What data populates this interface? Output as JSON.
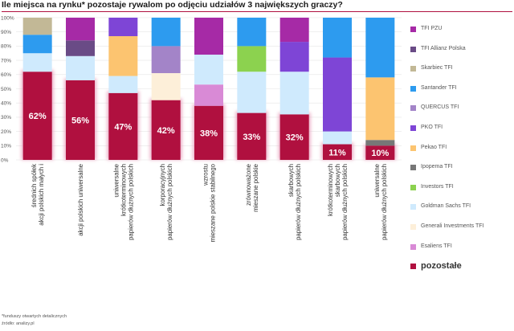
{
  "chart_data": {
    "type": "stacked-bar",
    "title": "Ile miejsca na rynku* pozostaje rywalom po odjęciu udziałów 3 największych graczy?",
    "ylim": [
      0,
      100
    ],
    "yticks": [
      "0%",
      "10%",
      "20%",
      "30%",
      "40%",
      "50%",
      "60%",
      "70%",
      "80%",
      "90%",
      "100%"
    ],
    "categories": [
      "akcji polskich małych i średnich spółek",
      "akcji polskich uniwersalne",
      "papierów dłużnych polskich krótkoterminowych uniwersalne",
      "papierów dłużnych polskich korporacyjnych",
      "mieszane polskie stabilnego wzrostu",
      "mieszane polskie zrównoważone",
      "papierów dłużnych polskich skarbowych",
      "papierów dłużnych polskich skarbowych krótkoterminowych",
      "papierów dłużnych polskich uniwersalne"
    ],
    "series": [
      {
        "name": "pozostałe",
        "color": "#b0103f",
        "values": [
          62,
          56,
          47,
          42,
          38,
          33,
          32,
          11,
          10
        ]
      },
      {
        "name": "Esaliens TFI",
        "color": "#d98ad6",
        "values": [
          0,
          0,
          0,
          0,
          15,
          0,
          0,
          0,
          0
        ]
      },
      {
        "name": "Generali Investments TFI",
        "color": "#fdefd9",
        "values": [
          0,
          0,
          0,
          19,
          0,
          0,
          0,
          0,
          0
        ]
      },
      {
        "name": "Goldman Sachs TFI",
        "color": "#cfeafd",
        "values": [
          13,
          17,
          12,
          0,
          21,
          29,
          30,
          9,
          0
        ]
      },
      {
        "name": "Investors TFI",
        "color": "#8cd24f",
        "values": [
          0,
          0,
          0,
          0,
          0,
          18,
          0,
          0,
          0
        ]
      },
      {
        "name": "Ipopema TFI",
        "color": "#777777",
        "values": [
          0,
          0,
          0,
          0,
          0,
          0,
          0,
          0,
          4
        ]
      },
      {
        "name": "Pekao TFI",
        "color": "#fcc470",
        "values": [
          0,
          0,
          28,
          0,
          0,
          0,
          0,
          0,
          44
        ]
      },
      {
        "name": "PKO TFI",
        "color": "#7e45d6",
        "values": [
          0,
          0,
          13,
          0,
          0,
          0,
          21,
          52,
          0
        ]
      },
      {
        "name": "QUERCUS TFI",
        "color": "#a384c8",
        "values": [
          0,
          0,
          0,
          19,
          0,
          0,
          0,
          0,
          0
        ]
      },
      {
        "name": "Santander TFI",
        "color": "#2d9bef",
        "values": [
          13,
          0,
          0,
          20,
          0,
          20,
          0,
          28,
          42
        ]
      },
      {
        "name": "Skarbiec TFI",
        "color": "#c2b896",
        "values": [
          12,
          0,
          0,
          0,
          0,
          0,
          0,
          0,
          0
        ]
      },
      {
        "name": "TFI Allianz Polska",
        "color": "#6a4b86",
        "values": [
          0,
          11,
          0,
          0,
          0,
          0,
          0,
          0,
          0
        ]
      },
      {
        "name": "TFI PZU",
        "color": "#a62aa6",
        "values": [
          0,
          16,
          0,
          0,
          26,
          0,
          17,
          0,
          0
        ]
      }
    ],
    "data_labels": [
      "62%",
      "56%",
      "47%",
      "42%",
      "38%",
      "33%",
      "32%",
      "11%",
      "10%"
    ]
  },
  "legend": [
    {
      "label": "TFI PZU",
      "color": "#a62aa6"
    },
    {
      "label": "TFI Allianz Polska",
      "color": "#6a4b86"
    },
    {
      "label": "Skarbiec TFI",
      "color": "#c2b896"
    },
    {
      "label": "Santander TFI",
      "color": "#2d9bef"
    },
    {
      "label": "QUERCUS TFI",
      "color": "#a384c8"
    },
    {
      "label": "PKO TFI",
      "color": "#7e45d6"
    },
    {
      "label": "Pekao TFI",
      "color": "#fcc470"
    },
    {
      "label": "Ipopema TFI",
      "color": "#777777"
    },
    {
      "label": "Investors TFI",
      "color": "#8cd24f"
    },
    {
      "label": "Goldman Sachs TFI",
      "color": "#cfeafd"
    },
    {
      "label": "Generali Investments TFI",
      "color": "#fdefd9"
    },
    {
      "label": "Esaliens TFI",
      "color": "#d98ad6"
    },
    {
      "label": "pozostałe",
      "color": "#b0103f"
    }
  ],
  "footnote": "*funduszy otwartych detalicznych",
  "source": "źródło: analizy.pl"
}
